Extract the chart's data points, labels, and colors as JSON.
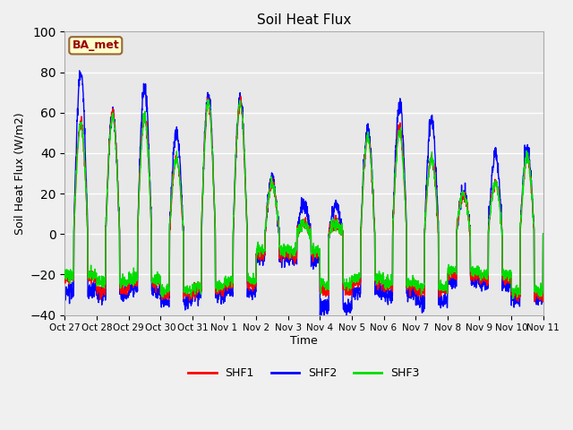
{
  "title": "Soil Heat Flux",
  "xlabel": "Time",
  "ylabel": "Soil Heat Flux (W/m2)",
  "ylim": [
    -40,
    100
  ],
  "yticks": [
    -40,
    -20,
    0,
    20,
    40,
    60,
    80,
    100
  ],
  "colors": {
    "SHF1": "#FF0000",
    "SHF2": "#0000FF",
    "SHF3": "#00DD00"
  },
  "fig_bg": "#F0F0F0",
  "plot_bg": "#E8E8E8",
  "grid_color": "#FFFFFF",
  "annotation_text": "BA_met",
  "annotation_bg": "#FFFFCC",
  "annotation_fg": "#990000",
  "annotation_border": "#996633",
  "xtick_labels": [
    "Oct 27",
    "Oct 28",
    "Oct 29",
    "Oct 30",
    "Oct 31",
    "Nov 1",
    "Nov 2",
    "Nov 3",
    "Nov 4",
    "Nov 5",
    "Nov 6",
    "Nov 7",
    "Nov 8",
    "Nov 9",
    "Nov 10",
    "Nov 11"
  ],
  "line_width": 1.0,
  "n_days": 15,
  "pts_per_day": 144,
  "shf1_day_amps": [
    55,
    60,
    58,
    37,
    65,
    65,
    25,
    5,
    5,
    48,
    52,
    38,
    20,
    25,
    38
  ],
  "shf2_day_amps": [
    80,
    60,
    73,
    50,
    68,
    68,
    27,
    15,
    14,
    52,
    65,
    57,
    20,
    40,
    42
  ],
  "shf3_day_amps": [
    55,
    58,
    58,
    37,
    65,
    65,
    25,
    5,
    5,
    48,
    50,
    37,
    20,
    25,
    38
  ],
  "shf1_night_vals": [
    -22,
    -28,
    -24,
    -30,
    -28,
    -25,
    -10,
    -10,
    -28,
    -24,
    -26,
    -28,
    -20,
    -22,
    -30
  ],
  "shf2_night_vals": [
    -28,
    -30,
    -28,
    -33,
    -30,
    -28,
    -12,
    -12,
    -37,
    -28,
    -30,
    -33,
    -23,
    -25,
    -32
  ],
  "shf3_night_vals": [
    -20,
    -24,
    -22,
    -28,
    -26,
    -23,
    -8,
    -8,
    -25,
    -22,
    -24,
    -26,
    -18,
    -20,
    -28
  ],
  "day_start": 0.28,
  "day_end": 0.72
}
